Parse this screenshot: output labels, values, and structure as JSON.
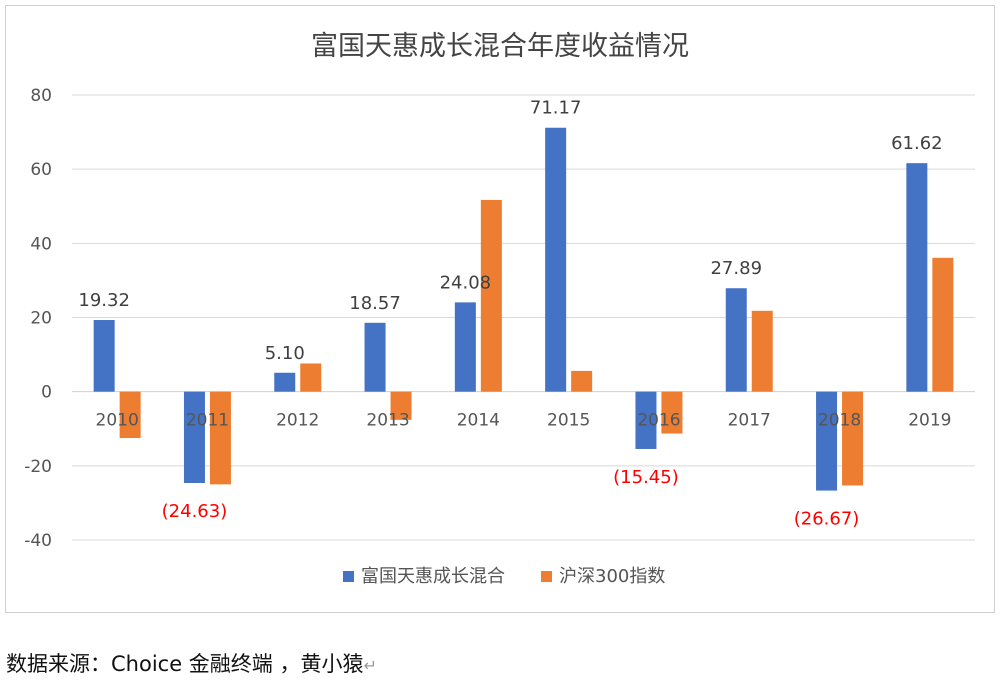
{
  "chart_data": {
    "type": "bar",
    "title": "富国天惠成长混合年度收益情况",
    "categories": [
      "2010",
      "2011",
      "2012",
      "2013",
      "2014",
      "2015",
      "2016",
      "2017",
      "2018",
      "2019"
    ],
    "series": [
      {
        "name": "富国天惠成长混合",
        "color": "#4472C4",
        "values": [
          19.32,
          -24.63,
          5.1,
          18.57,
          24.08,
          71.17,
          -15.45,
          27.89,
          -26.67,
          61.62
        ]
      },
      {
        "name": "沪深300指数",
        "color": "#ED7D31",
        "values": [
          -12.5,
          -25.0,
          7.6,
          -7.6,
          51.7,
          5.6,
          -11.3,
          21.8,
          -25.3,
          36.1
        ]
      }
    ],
    "data_labels": [
      "19.32",
      "(24.63)",
      "5.10",
      "18.57",
      "24.08",
      "71.17",
      "(15.45)",
      "27.89",
      "(26.67)",
      "61.62"
    ],
    "negative_label_color": "#FF0000",
    "ylim": [
      -40,
      80
    ],
    "yticks": [
      -40,
      -20,
      0,
      20,
      40,
      60,
      80
    ],
    "grid": true,
    "legend": "bottom"
  },
  "footer": {
    "source": "数据来源：Choice 金融终端 ，黄小猿",
    "mark": "↵"
  }
}
